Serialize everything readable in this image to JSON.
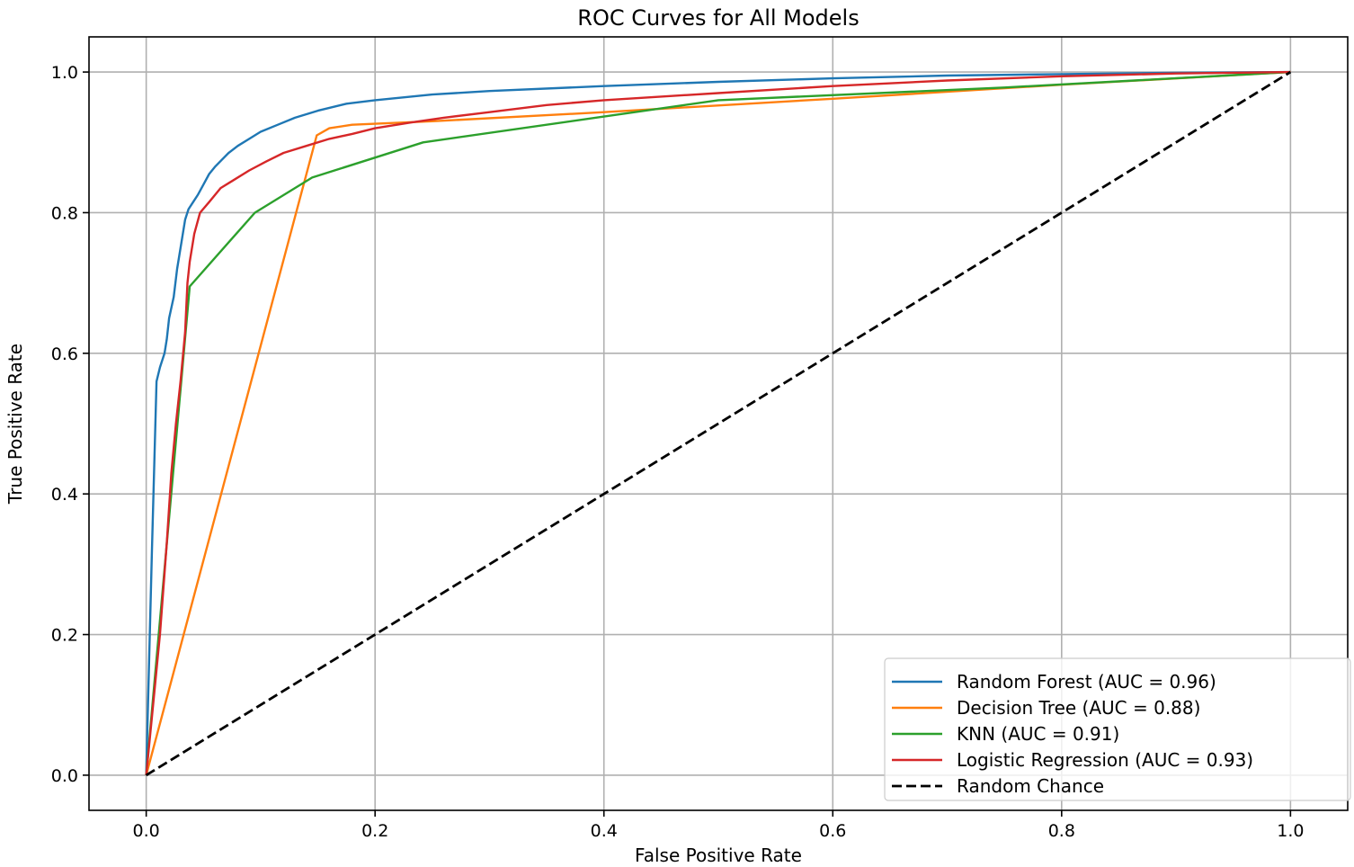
{
  "chart_data": {
    "type": "line",
    "title": "ROC Curves for All Models",
    "xlabel": "False Positive Rate",
    "ylabel": "True Positive Rate",
    "xlim": [
      -0.05,
      1.05
    ],
    "ylim": [
      -0.05,
      1.05
    ],
    "grid": true,
    "legend_position": "bottom-right",
    "xticks": [
      0.0,
      0.2,
      0.4,
      0.6,
      0.8,
      1.0
    ],
    "xtick_labels": [
      "0.0",
      "0.2",
      "0.4",
      "0.6",
      "0.8",
      "1.0"
    ],
    "yticks": [
      0.0,
      0.2,
      0.4,
      0.6,
      0.8,
      1.0
    ],
    "ytick_labels": [
      "0.0",
      "0.2",
      "0.4",
      "0.6",
      "0.8",
      "1.0"
    ],
    "series": [
      {
        "name": "Random Forest (AUC = 0.96)",
        "color": "#1f77b4",
        "style": "solid",
        "x": [
          0,
          0.005,
          0.009,
          0.012,
          0.016,
          0.018,
          0.02,
          0.024,
          0.027,
          0.031,
          0.034,
          0.037,
          0.041,
          0.045,
          0.05,
          0.055,
          0.06,
          0.066,
          0.072,
          0.08,
          0.09,
          0.1,
          0.115,
          0.13,
          0.15,
          0.175,
          0.2,
          0.25,
          0.3,
          0.4,
          0.5,
          0.6,
          0.7,
          0.8,
          0.9,
          1.0
        ],
        "y": [
          0,
          0.32,
          0.56,
          0.58,
          0.6,
          0.62,
          0.65,
          0.68,
          0.72,
          0.76,
          0.79,
          0.805,
          0.815,
          0.825,
          0.84,
          0.855,
          0.865,
          0.875,
          0.885,
          0.895,
          0.905,
          0.915,
          0.925,
          0.935,
          0.945,
          0.955,
          0.96,
          0.968,
          0.973,
          0.98,
          0.986,
          0.991,
          0.995,
          0.997,
          0.999,
          1.0
        ]
      },
      {
        "name": "Decision Tree (AUC = 0.88)",
        "color": "#ff7f0e",
        "style": "solid",
        "x": [
          0,
          0.149,
          0.16,
          0.18,
          0.25,
          0.4,
          0.6,
          0.8,
          1.0
        ],
        "y": [
          0,
          0.91,
          0.92,
          0.925,
          0.93,
          0.943,
          0.962,
          0.982,
          1.0
        ]
      },
      {
        "name": "KNN (AUC = 0.91)",
        "color": "#2ca02c",
        "style": "solid",
        "x": [
          0,
          0.038,
          0.095,
          0.145,
          0.242,
          0.5,
          0.75,
          1.0
        ],
        "y": [
          0,
          0.695,
          0.8,
          0.85,
          0.9,
          0.96,
          0.978,
          1.0
        ]
      },
      {
        "name": "Logistic Regression (AUC = 0.93)",
        "color": "#d62728",
        "style": "solid",
        "x": [
          0,
          0.006,
          0.012,
          0.018,
          0.022,
          0.026,
          0.03,
          0.034,
          0.036,
          0.038,
          0.042,
          0.047,
          0.055,
          0.065,
          0.075,
          0.09,
          0.105,
          0.12,
          0.14,
          0.16,
          0.18,
          0.2,
          0.23,
          0.26,
          0.3,
          0.35,
          0.4,
          0.5,
          0.6,
          0.7,
          0.8,
          0.9,
          1.0
        ],
        "y": [
          0,
          0.1,
          0.2,
          0.33,
          0.43,
          0.5,
          0.56,
          0.63,
          0.7,
          0.73,
          0.77,
          0.8,
          0.815,
          0.835,
          0.845,
          0.86,
          0.873,
          0.885,
          0.895,
          0.905,
          0.912,
          0.92,
          0.928,
          0.935,
          0.943,
          0.953,
          0.96,
          0.97,
          0.98,
          0.988,
          0.994,
          0.998,
          1.0
        ]
      },
      {
        "name": "Random Chance",
        "color": "#000000",
        "style": "dashed",
        "x": [
          0,
          1
        ],
        "y": [
          0,
          1
        ]
      }
    ]
  }
}
